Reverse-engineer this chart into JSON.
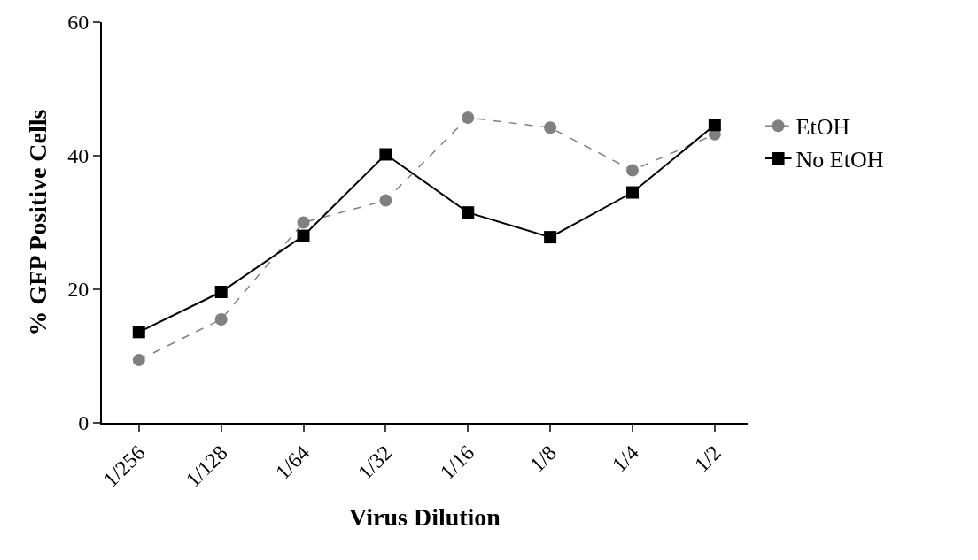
{
  "chart_data": {
    "type": "line",
    "xlabel": "Virus Dilution",
    "ylabel": "% GFP Positive Cells",
    "categories": [
      "1/256",
      "1/128",
      "1/64",
      "1/32",
      "1/16",
      "1/8",
      "1/4",
      "1/2"
    ],
    "ylim": [
      0,
      60
    ],
    "yticks": [
      0,
      20,
      40,
      60
    ],
    "legend": "right",
    "series": [
      {
        "name": "EtOH",
        "color": "#808080",
        "marker": "circle",
        "line_style": "dashed",
        "values": [
          9.4,
          15.5,
          30,
          33.3,
          45.7,
          44.2,
          37.8,
          43.2
        ]
      },
      {
        "name": "No EtOH",
        "color": "#000000",
        "marker": "square",
        "line_style": "solid",
        "values": [
          13.6,
          19.6,
          28,
          40.2,
          31.5,
          27.8,
          34.5,
          44.6
        ]
      }
    ]
  }
}
